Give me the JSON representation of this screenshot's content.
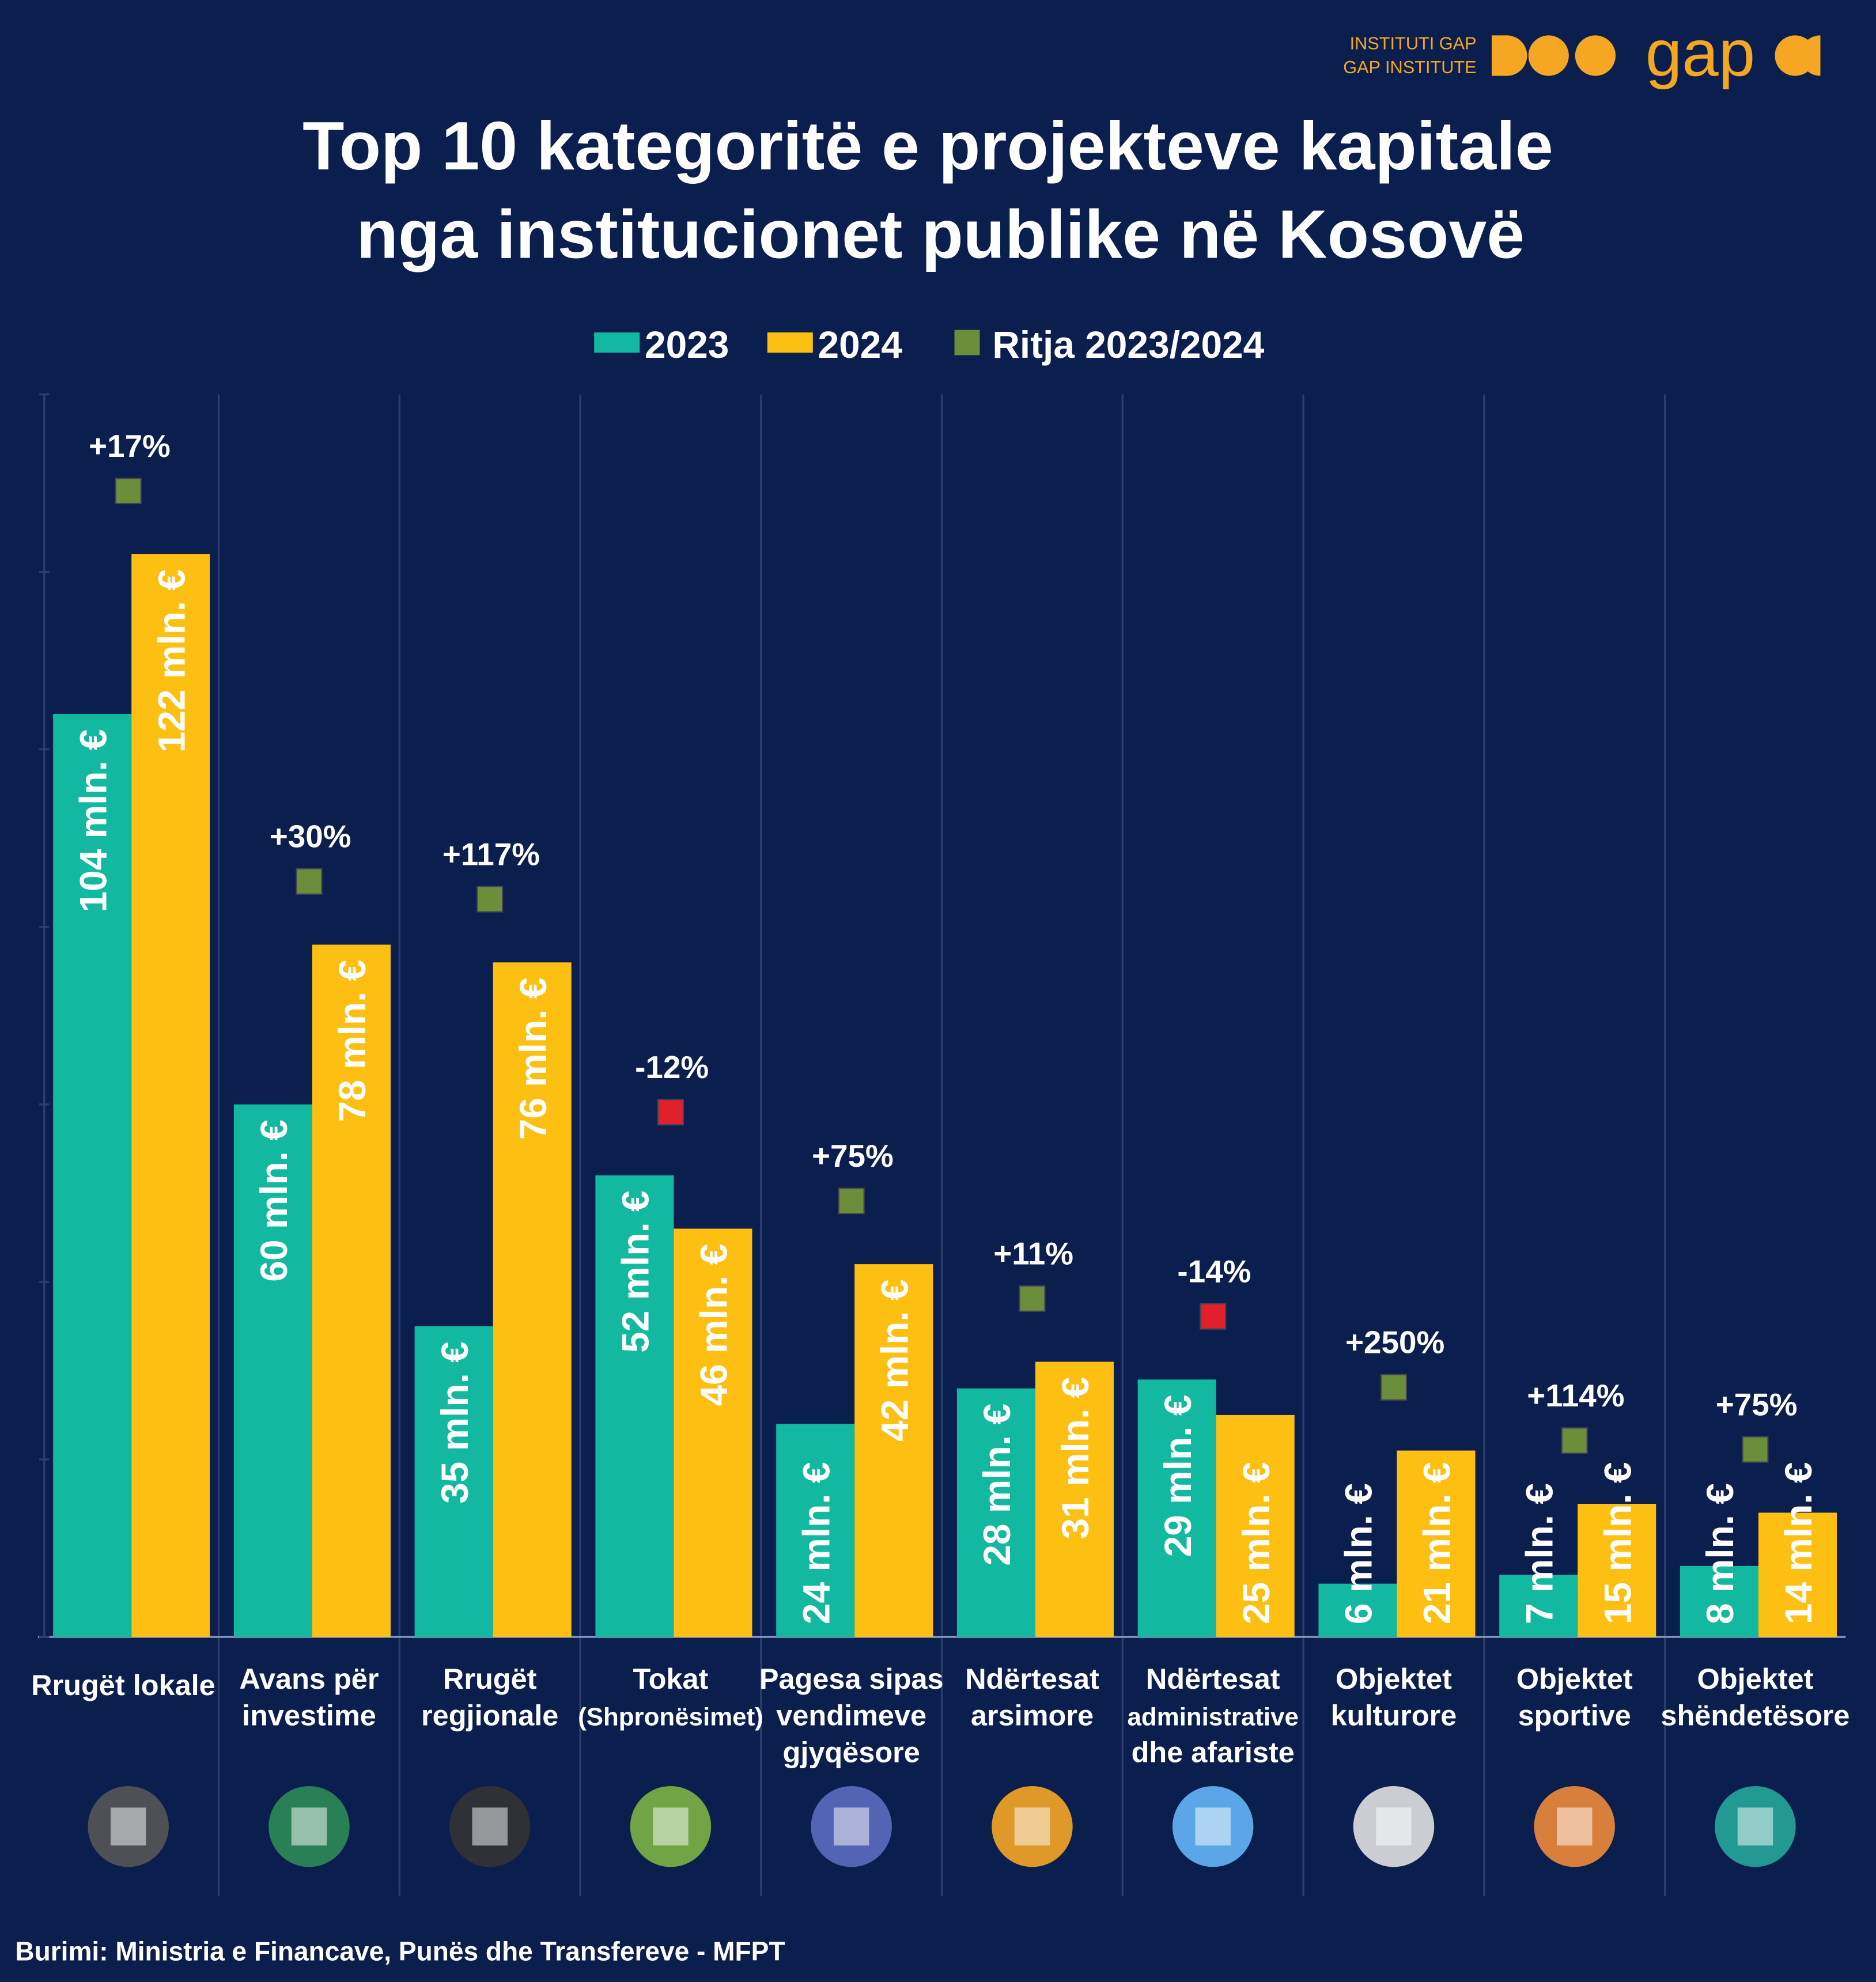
{
  "chart_data": {
    "type": "bar",
    "title": [
      "Top 10 kategoritë e projekteve kapitale",
      "nga institucionet publike në Kosovë"
    ],
    "logo": {
      "lines": [
        "INSTITUTI GAP",
        "GAP INSTITUTE"
      ],
      "word": "gap"
    },
    "source": "Burimi: Ministria e Financave, Punës dhe Transfereve - MFPT",
    "categories": [
      [
        "Rrugët lokale"
      ],
      [
        "Avans për",
        "investime"
      ],
      [
        "Rrugët",
        "regjionale"
      ],
      [
        "Tokat",
        "(Shpronësimet)"
      ],
      [
        "Pagesa sipas",
        "vendimeve",
        "gjyqësore"
      ],
      [
        "Ndërtesat",
        "arsimore"
      ],
      [
        "Ndërtesat",
        "administrative",
        "dhe afariste"
      ],
      [
        "Objektet",
        "kulturore"
      ],
      [
        "Objektet",
        "sportive"
      ],
      [
        "Objektet",
        "shëndetësore"
      ]
    ],
    "series": [
      {
        "name": "2023",
        "color": "#12b8a0",
        "values": [
          104,
          60,
          35,
          52,
          24,
          28,
          29,
          6,
          7,
          8
        ],
        "value_labels": [
          "104 mln. €",
          "60 mln. €",
          "35 mln. €",
          "52 mln. €",
          "24 mln. €",
          "28 mln. €",
          "29 mln. €",
          "6 mln. €",
          "7 mln. €",
          "8 mln. €"
        ]
      },
      {
        "name": "2024",
        "color": "#fcbf12",
        "values": [
          122,
          78,
          76,
          46,
          42,
          31,
          25,
          21,
          15,
          14
        ],
        "value_labels": [
          "122 mln. €",
          "78 mln. €",
          "76 mln. €",
          "46 mln. €",
          "42 mln. €",
          "31 mln. €",
          "25 mln. €",
          "21 mln. €",
          "15 mln. €",
          "14 mln. €"
        ]
      },
      {
        "name": "Ritja 2023/2024",
        "type": "scatter",
        "color": "#6b8e3a",
        "negative_color": "#e0202a",
        "values": [
          17,
          30,
          117,
          -12,
          75,
          11,
          -14,
          250,
          114,
          75
        ],
        "value_labels": [
          "+17%",
          "+30%",
          "+117%",
          "-12%",
          "+75%",
          "+11%",
          "-14%",
          "+250%",
          "+114%",
          "+75%"
        ]
      }
    ],
    "ylim": [
      0,
      140
    ],
    "yticks": [
      0,
      20,
      40,
      60,
      80,
      100,
      120,
      140
    ]
  }
}
